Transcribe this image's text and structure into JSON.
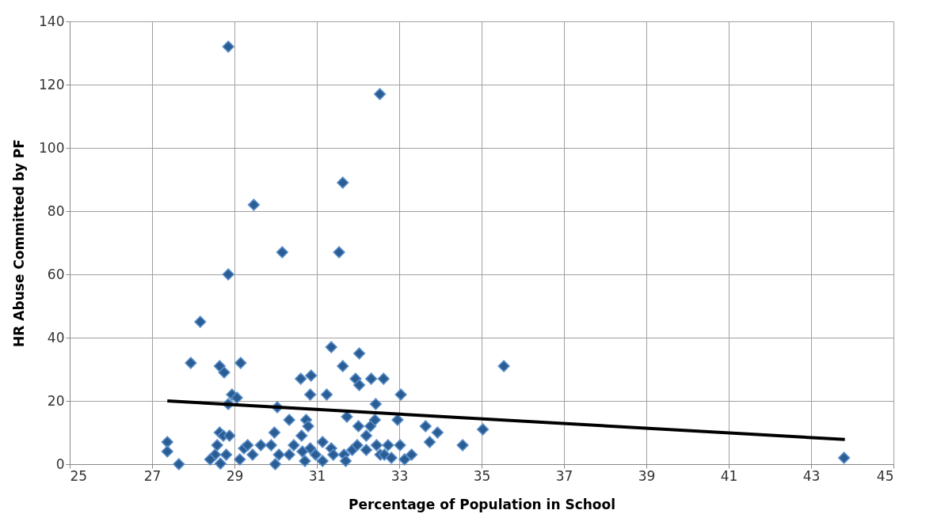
{
  "chart_data": {
    "type": "scatter",
    "xlabel": "Percentage of Population in School",
    "ylabel": "HR Abuse Committed by PF",
    "xlim": [
      25,
      45
    ],
    "xticks": [
      25,
      27,
      29,
      31,
      33,
      35,
      37,
      39,
      41,
      43,
      45
    ],
    "ylim": [
      0,
      140
    ],
    "yticks": [
      0,
      20,
      40,
      60,
      80,
      100,
      120,
      140
    ],
    "grid": true,
    "marker": "diamond",
    "series": [
      {
        "color": "#2a5d93",
        "x": [
          28.85,
          32.53,
          31.63,
          29.47,
          30.16,
          31.54,
          28.85,
          28.17,
          27.94,
          29.15,
          28.64,
          28.75,
          31.35,
          32.03,
          35.54,
          31.63,
          30.61,
          30.86,
          31.94,
          32.32,
          32.62,
          32.03,
          28.94,
          29.06,
          31.24,
          30.84,
          33.04,
          28.85,
          30.04,
          32.43,
          30.33,
          30.74,
          31.73,
          32.96,
          33.64,
          35.03,
          28.64,
          28.73,
          28.88,
          30.79,
          32.01,
          32.3,
          32.41,
          33.93,
          33.74,
          29.97,
          30.63,
          31.14,
          32.2,
          27.37,
          27.37,
          27.65,
          28.53,
          28.58,
          28.41,
          43.8,
          34.54,
          28.66,
          28.8,
          29.13,
          29.23,
          29.32,
          29.44,
          29.64,
          29.89,
          29.99,
          30.08,
          30.33,
          30.44,
          30.65,
          30.71,
          30.84,
          30.97,
          31.14,
          31.35,
          31.4,
          31.66,
          31.7,
          31.86,
          31.98,
          32.2,
          32.45,
          32.54,
          32.64,
          32.73,
          33.02,
          33.13,
          33.3,
          32.81
        ],
        "values": [
          132,
          117,
          89,
          82,
          67,
          67,
          60,
          45,
          32,
          32,
          31,
          29,
          37,
          35,
          31,
          31,
          27,
          28,
          27,
          27,
          27,
          25,
          22,
          21,
          22,
          22,
          22,
          19,
          18,
          19,
          14,
          14,
          15,
          14,
          12,
          11,
          10,
          9,
          9,
          12,
          12,
          12,
          14,
          10,
          7,
          10,
          9,
          7,
          9,
          7,
          4,
          0,
          3,
          6,
          1.5,
          2,
          6,
          0.2,
          3,
          1.5,
          5,
          6,
          3,
          6,
          6,
          0,
          3,
          3,
          6,
          4,
          1,
          5,
          3,
          1,
          5,
          3,
          3,
          1,
          4.5,
          6,
          4.5,
          6,
          3,
          3,
          6,
          6,
          1.5,
          3,
          2
        ]
      },
      {
        "type": "line",
        "color": "#000000",
        "marker": "none",
        "line_style": "solid",
        "x": [
          27.37,
          43.82
        ],
        "values": [
          20,
          7.8
        ]
      }
    ]
  }
}
